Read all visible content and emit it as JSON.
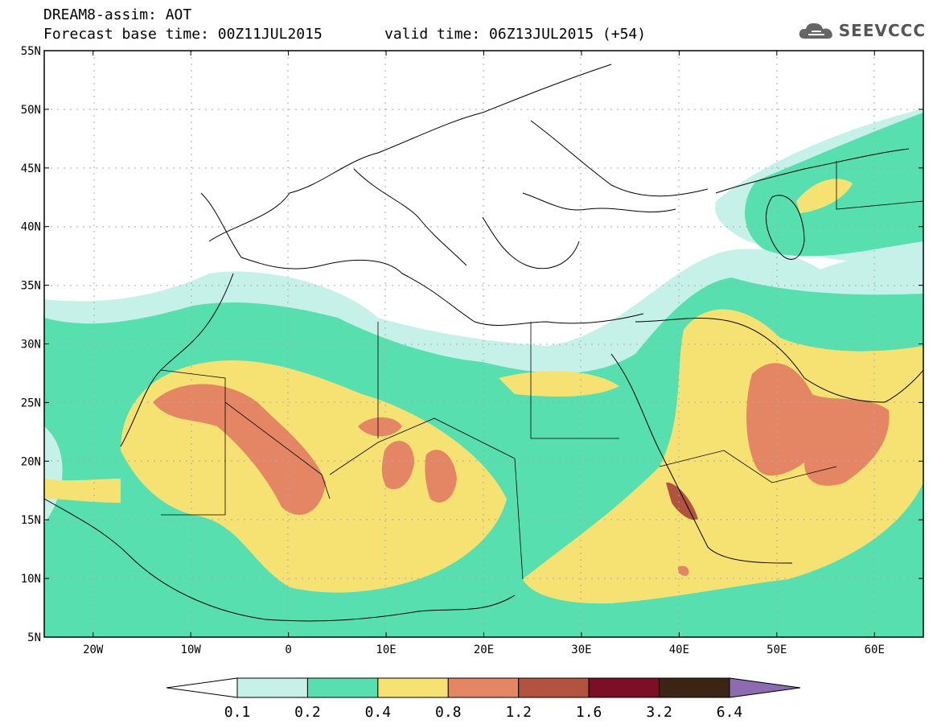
{
  "header": {
    "line1": "DREAM8-assim: AOT",
    "line2": "Forecast base time: 00Z11JUL2015",
    "valid": "valid time: 06Z13JUL2015 (+54)",
    "logo_text": "SEEVCCC",
    "logo_icon": "cloud-icon"
  },
  "map": {
    "lon_range": [
      -25,
      65
    ],
    "lat_range": [
      5,
      55
    ],
    "lon_ticks": [
      "20W",
      "10W",
      "0",
      "10E",
      "20E",
      "30E",
      "40E",
      "50E",
      "60E"
    ],
    "lat_ticks": [
      "55N",
      "50N",
      "45N",
      "40N",
      "35N",
      "30N",
      "25N",
      "20N",
      "15N",
      "10N",
      "5N"
    ]
  },
  "colorbar": {
    "labels": [
      "0.1",
      "0.2",
      "0.4",
      "0.8",
      "1.2",
      "1.6",
      "3.2",
      "6.4"
    ],
    "colors": [
      "#ffffff",
      "#c6f1e9",
      "#57dfb0",
      "#f6e272",
      "#e48664",
      "#b2533f",
      "#7b0f25",
      "#3c2514",
      "#8c6bb1"
    ]
  }
}
